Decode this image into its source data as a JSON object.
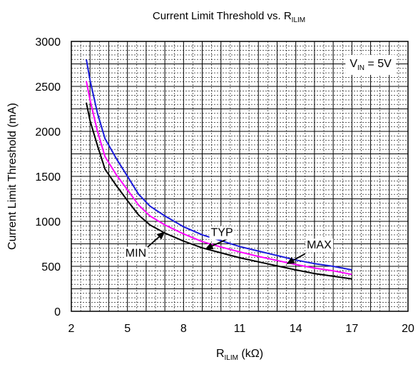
{
  "chart_data": {
    "type": "line",
    "title": {
      "main": "Current Limit Threshold vs. R",
      "sub": "ILIM"
    },
    "xlabel": {
      "main": "R",
      "sub": "ILIM",
      "unit": " (kΩ)"
    },
    "ylabel": "Current Limit Threshold (mA)",
    "xlim": [
      2,
      20
    ],
    "ylim": [
      0,
      3000
    ],
    "x_ticks": [
      2,
      5,
      8,
      11,
      14,
      17,
      20
    ],
    "y_ticks": [
      0,
      500,
      1000,
      1500,
      2000,
      2500,
      3000
    ],
    "grid": true,
    "annotation": {
      "main": "V",
      "sub": "IN",
      "rest": " = 5V"
    },
    "series": [
      {
        "name": "MAX",
        "color": "#1a1adc",
        "x": [
          2.8,
          3.0,
          3.4,
          3.8,
          4.4,
          5.0,
          5.6,
          6.2,
          7.0,
          8.0,
          9.0,
          10.0,
          11.0,
          12.0,
          13.0,
          14.0,
          15.0,
          16.0,
          17.0
        ],
        "y": [
          2800,
          2570,
          2200,
          1920,
          1700,
          1500,
          1300,
          1170,
          1060,
          940,
          850,
          785,
          720,
          670,
          620,
          570,
          530,
          500,
          460
        ]
      },
      {
        "name": "TYP",
        "color": "#ff00ff",
        "x": [
          2.8,
          3.0,
          3.4,
          3.8,
          4.4,
          5.0,
          5.6,
          6.2,
          7.0,
          8.0,
          9.0,
          10.0,
          11.0,
          12.0,
          13.0,
          14.0,
          15.0,
          16.0,
          17.0
        ],
        "y": [
          2560,
          2350,
          2000,
          1720,
          1520,
          1350,
          1180,
          1060,
          960,
          860,
          775,
          715,
          660,
          610,
          565,
          520,
          480,
          450,
          410
        ]
      },
      {
        "name": "MIN",
        "color": "#000000",
        "x": [
          2.8,
          3.0,
          3.4,
          3.8,
          4.4,
          5.0,
          5.6,
          6.2,
          7.0,
          8.0,
          9.0,
          10.0,
          11.0,
          12.0,
          13.0,
          14.0,
          15.0,
          16.0,
          17.0
        ],
        "y": [
          2320,
          2120,
          1840,
          1580,
          1400,
          1230,
          1070,
          960,
          870,
          780,
          705,
          650,
          595,
          550,
          505,
          460,
          420,
          390,
          360
        ]
      }
    ],
    "labels": [
      {
        "text": "MAX",
        "color": "#1a1adc",
        "at": [
          15.25,
          730
        ],
        "arrow_from": [
          14.5,
          640
        ],
        "arrow_to": [
          13.5,
          525
        ]
      },
      {
        "text": "TYP",
        "color": "#ff00ff",
        "at": [
          10.05,
          870
        ],
        "arrow_from": [
          10.4,
          810
        ],
        "arrow_to": [
          9.15,
          690
        ]
      },
      {
        "text": "MIN",
        "color": "#000000",
        "at": [
          5.45,
          640
        ],
        "arrow_from": [
          6.0,
          700
        ],
        "arrow_to": [
          7.0,
          885
        ]
      }
    ]
  }
}
